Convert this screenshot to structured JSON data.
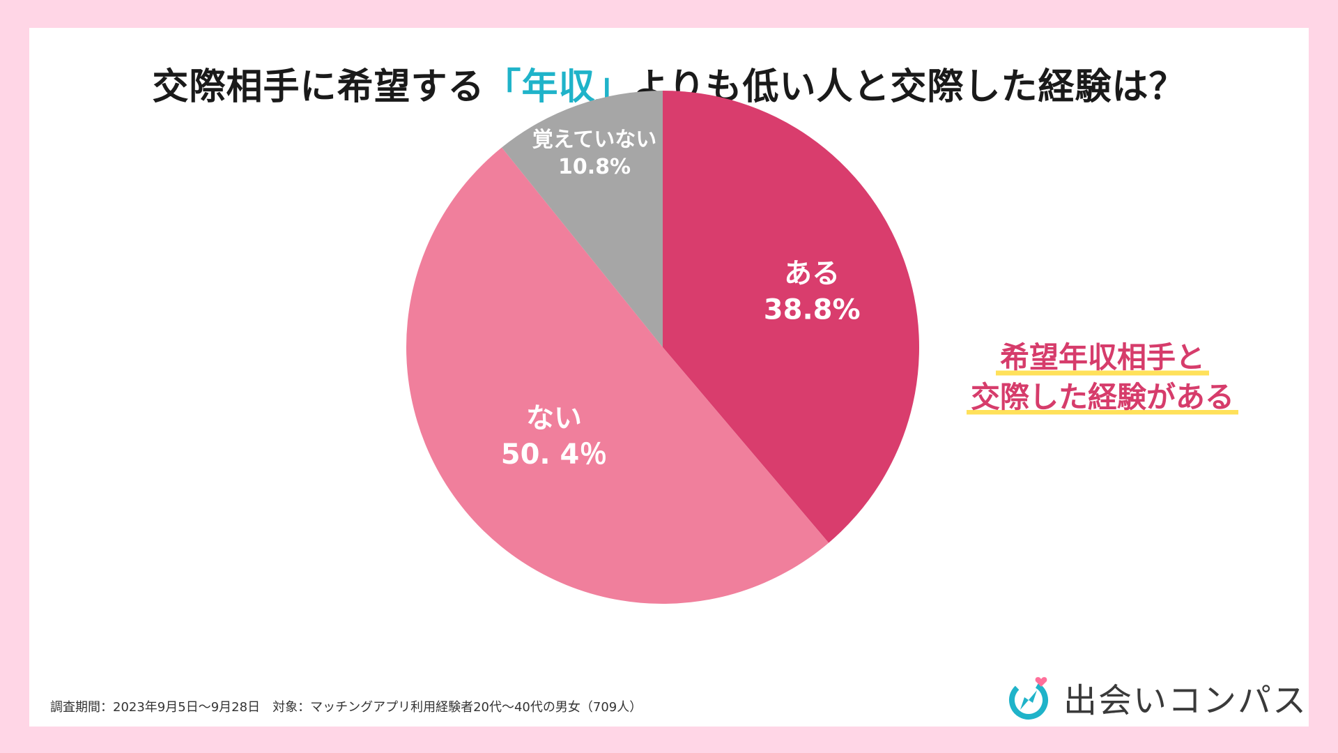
{
  "title": {
    "prefix": "交際相手に希望する",
    "highlight": "「年収」",
    "suffix": "よりも低い人と交際した経験は？"
  },
  "chart_data": {
    "type": "pie",
    "title": "交際相手に希望する「年収」よりも低い人と交際した経験は？",
    "slices": [
      {
        "label": "ある",
        "value": 38.8,
        "display": "38.8%",
        "color": "#d93d6d"
      },
      {
        "label": "ない",
        "value": 50.4,
        "display": "50. 4％",
        "color": "#f07f9c"
      },
      {
        "label": "覚えていない",
        "value": 10.8,
        "display": "10.8%",
        "color": "#a6a6a6"
      }
    ],
    "start": "12 o'clock",
    "direction": "clockwise"
  },
  "callout": {
    "line1": "希望年収相手と",
    "line2": "交際した経験がある",
    "color": "#d63c6b",
    "underline_color": "#ffe15a"
  },
  "footer": {
    "text": "調査期間：2023年9月5日〜9月28日　対象：マッチングアプリ利用経験者20代〜40代の男女（709人）"
  },
  "brand": {
    "name": "出会いコンパス",
    "icon": "compass-heart-icon",
    "accent": "#1fb3c9",
    "heart_color": "#ff6f9a"
  },
  "colors": {
    "background": "#ffd6e6",
    "card": "#ffffff"
  }
}
